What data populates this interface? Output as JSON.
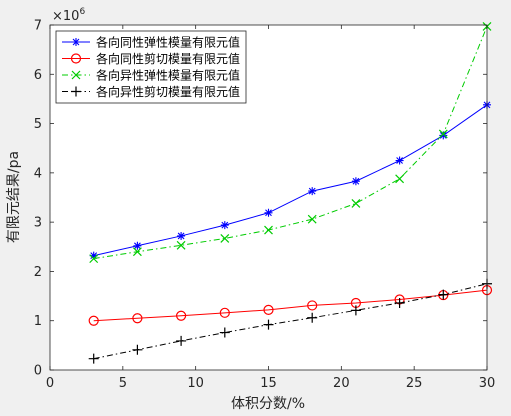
{
  "chart_data": {
    "type": "line",
    "title": "",
    "xlabel": "体积分数/%",
    "ylabel": "有限元结果/pa",
    "y_exponent_label": "×10",
    "y_exponent_power": "6",
    "xlim": [
      0,
      30
    ],
    "ylim": [
      0,
      7
    ],
    "xticks": [
      0,
      5,
      10,
      15,
      20,
      25,
      30
    ],
    "yticks": [
      0,
      1,
      2,
      3,
      4,
      5,
      6,
      7
    ],
    "grid": false,
    "legend_position": "top-left",
    "x": [
      3,
      6,
      9,
      12,
      15,
      18,
      21,
      24,
      27,
      30
    ],
    "series": [
      {
        "name": "各向同性弹性模量有限元值",
        "values": [
          2.32,
          2.52,
          2.72,
          2.94,
          3.19,
          3.63,
          3.83,
          4.25,
          4.76,
          5.38
        ],
        "color": "#0000ff",
        "marker": "asterisk",
        "dash": "solid"
      },
      {
        "name": "各向同性剪切模量有限元值",
        "values": [
          1.0,
          1.05,
          1.1,
          1.16,
          1.22,
          1.31,
          1.36,
          1.43,
          1.52,
          1.62
        ],
        "color": "#ff0000",
        "marker": "circle",
        "dash": "solid"
      },
      {
        "name": "各向异性弹性模量有限元值",
        "values": [
          2.26,
          2.4,
          2.53,
          2.67,
          2.84,
          3.06,
          3.38,
          3.88,
          4.79,
          6.97
        ],
        "color": "#00cc00",
        "marker": "x",
        "dash": "dashdot"
      },
      {
        "name": "各向异性剪切模量有限元值",
        "values": [
          0.23,
          0.41,
          0.59,
          0.76,
          0.92,
          1.06,
          1.21,
          1.36,
          1.53,
          1.75
        ],
        "color": "#000000",
        "marker": "plus",
        "dash": "dashdot"
      }
    ]
  }
}
